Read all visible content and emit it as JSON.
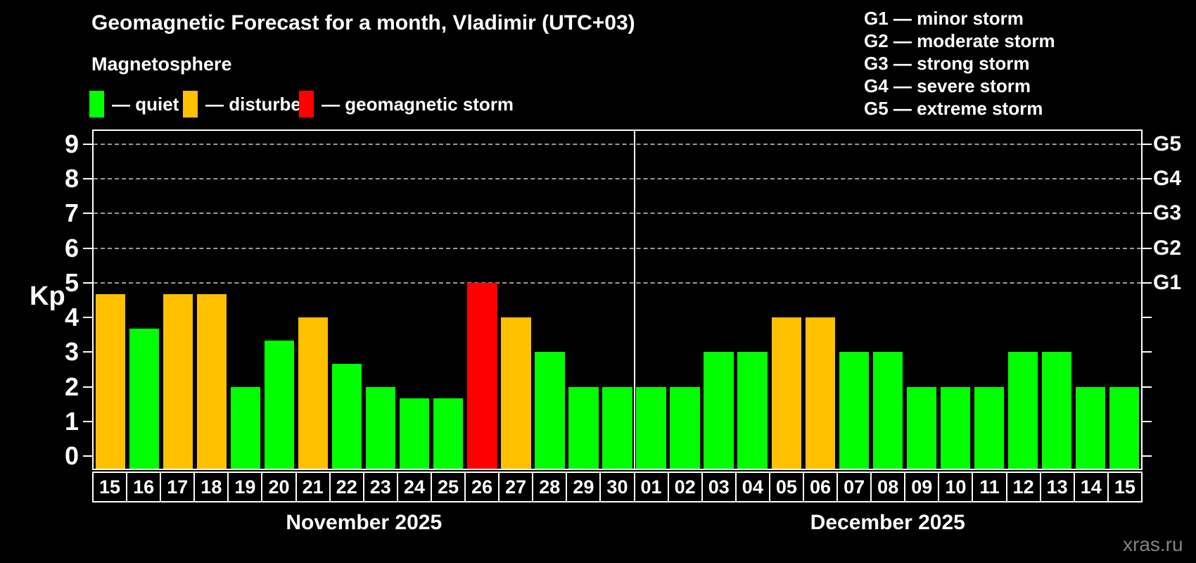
{
  "header": {
    "title": "Geomagnetic Forecast for a month, Vladimir (UTC+03)",
    "subtitle": "Magnetosphere"
  },
  "legend": {
    "items": [
      {
        "label": "— quiet",
        "status": "quiet"
      },
      {
        "label": "— disturbed",
        "status": "disturbed"
      },
      {
        "label": "— geomagnetic storm",
        "status": "storm"
      }
    ]
  },
  "g_legend": {
    "items": [
      "G1 — minor storm",
      "G2 — moderate storm",
      "G3 — strong storm",
      "G4 — severe storm",
      "G5 — extreme storm"
    ]
  },
  "colors": {
    "quiet": "#00ff00",
    "disturbed": "#ffc000",
    "storm": "#ff0000",
    "grid": "#9a9a9a",
    "axis": "#ffffff",
    "watermark": "#828282"
  },
  "watermark": "xras.ru",
  "chart_data": {
    "type": "bar",
    "title": "Geomagnetic Forecast for a month, Vladimir (UTC+03)",
    "ylabel": "Kp",
    "ylim": [
      -0.36,
      9.38
    ],
    "yticks": [
      0,
      1,
      2,
      3,
      4,
      5,
      6,
      7,
      8,
      9
    ],
    "grid_levels": [
      {
        "kp": 5,
        "label": "G1"
      },
      {
        "kp": 6,
        "label": "G2"
      },
      {
        "kp": 7,
        "label": "G3"
      },
      {
        "kp": 8,
        "label": "G4"
      },
      {
        "kp": 9,
        "label": "G5"
      }
    ],
    "separator_index": 16,
    "months": [
      {
        "label": "November 2025",
        "start_index": 0,
        "end_index": 15
      },
      {
        "label": "December 2025",
        "start_index": 16,
        "end_index": 30
      }
    ],
    "categories": [
      "15",
      "16",
      "17",
      "18",
      "19",
      "20",
      "21",
      "22",
      "23",
      "24",
      "25",
      "26",
      "27",
      "28",
      "29",
      "30",
      "01",
      "02",
      "03",
      "04",
      "05",
      "06",
      "07",
      "08",
      "09",
      "10",
      "11",
      "12",
      "13",
      "14",
      "15"
    ],
    "bars": [
      {
        "date": "15",
        "kp": 4.67,
        "status": "disturbed"
      },
      {
        "date": "16",
        "kp": 3.67,
        "status": "quiet"
      },
      {
        "date": "17",
        "kp": 4.67,
        "status": "disturbed"
      },
      {
        "date": "18",
        "kp": 4.67,
        "status": "disturbed"
      },
      {
        "date": "19",
        "kp": 2.0,
        "status": "quiet"
      },
      {
        "date": "20",
        "kp": 3.33,
        "status": "quiet"
      },
      {
        "date": "21",
        "kp": 4.0,
        "status": "disturbed"
      },
      {
        "date": "22",
        "kp": 2.67,
        "status": "quiet"
      },
      {
        "date": "23",
        "kp": 2.0,
        "status": "quiet"
      },
      {
        "date": "24",
        "kp": 1.67,
        "status": "quiet"
      },
      {
        "date": "25",
        "kp": 1.67,
        "status": "quiet"
      },
      {
        "date": "26",
        "kp": 5.0,
        "status": "storm"
      },
      {
        "date": "27",
        "kp": 4.0,
        "status": "disturbed"
      },
      {
        "date": "28",
        "kp": 3.0,
        "status": "quiet"
      },
      {
        "date": "29",
        "kp": 2.0,
        "status": "quiet"
      },
      {
        "date": "30",
        "kp": 2.0,
        "status": "quiet"
      },
      {
        "date": "01",
        "kp": 2.0,
        "status": "quiet"
      },
      {
        "date": "02",
        "kp": 2.0,
        "status": "quiet"
      },
      {
        "date": "03",
        "kp": 3.0,
        "status": "quiet"
      },
      {
        "date": "04",
        "kp": 3.0,
        "status": "quiet"
      },
      {
        "date": "05",
        "kp": 4.0,
        "status": "disturbed"
      },
      {
        "date": "06",
        "kp": 4.0,
        "status": "disturbed"
      },
      {
        "date": "07",
        "kp": 3.0,
        "status": "quiet"
      },
      {
        "date": "08",
        "kp": 3.0,
        "status": "quiet"
      },
      {
        "date": "09",
        "kp": 2.0,
        "status": "quiet"
      },
      {
        "date": "10",
        "kp": 2.0,
        "status": "quiet"
      },
      {
        "date": "11",
        "kp": 2.0,
        "status": "quiet"
      },
      {
        "date": "12",
        "kp": 3.0,
        "status": "quiet"
      },
      {
        "date": "13",
        "kp": 3.0,
        "status": "quiet"
      },
      {
        "date": "14",
        "kp": 2.0,
        "status": "quiet"
      },
      {
        "date": "15",
        "kp": 2.0,
        "status": "quiet"
      }
    ]
  }
}
